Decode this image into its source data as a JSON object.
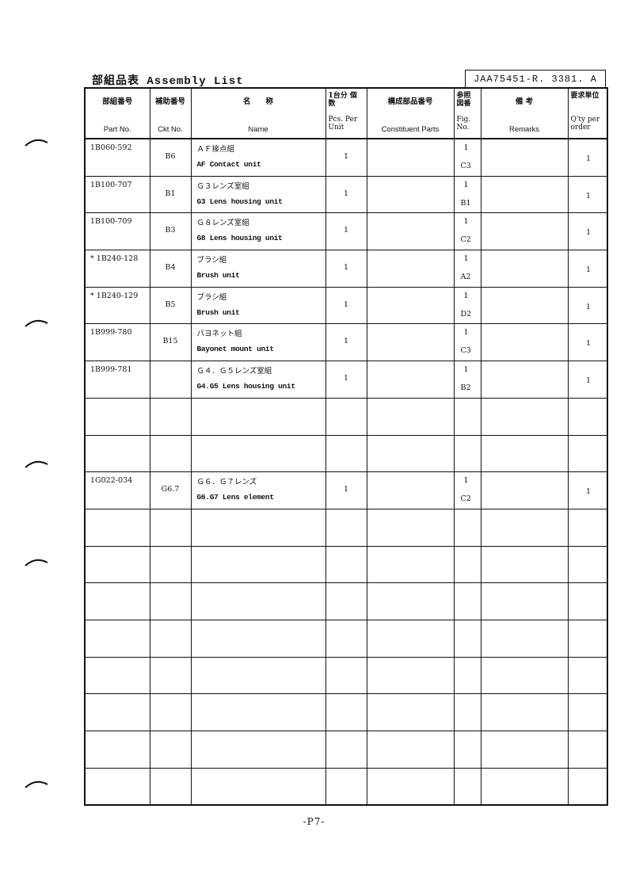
{
  "title": "部組品表 Assembly List",
  "doc_number": "JAA75451-R. 3381. A",
  "headers": [
    {
      "jp": "部組番号",
      "en": "Part   No."
    },
    {
      "jp": "補助番号",
      "en": "Ckt No."
    },
    {
      "jp": "名　　称",
      "en": "Name"
    },
    {
      "jp": "1台分 個 数",
      "en": "Pcs. Per Unit"
    },
    {
      "jp": "構成部品番号",
      "en": "Constituent Parts"
    },
    {
      "jp": "参照 図番",
      "en": "Fig. No."
    },
    {
      "jp": "備 考",
      "en": "Remarks"
    },
    {
      "jp": "要求単位",
      "en": "Q'ty per order"
    }
  ],
  "rows": [
    {
      "part": "1B060-592",
      "ckt": "B6",
      "name_jp": "ＡＦ接点組",
      "name_en": "AF Contact unit",
      "pcs": "1",
      "fig1": "1",
      "fig2": "C3",
      "qty": "1"
    },
    {
      "part": "1B100-707",
      "ckt": "B1",
      "name_jp": "Ｇ３レンズ室組",
      "name_en": "G3 Lens housing unit",
      "pcs": "1",
      "fig1": "1",
      "fig2": "B1",
      "qty": "1"
    },
    {
      "part": "1B100-709",
      "ckt": "B3",
      "name_jp": "Ｇ８レンズ室組",
      "name_en": "G8 Lens housing unit",
      "pcs": "1",
      "fig1": "1",
      "fig2": "C2",
      "qty": "1"
    },
    {
      "part": "* 1B240-128",
      "ckt": "B4",
      "name_jp": "ブラシ組",
      "name_en": "Brush unit",
      "pcs": "1",
      "fig1": "1",
      "fig2": "A2",
      "qty": "1"
    },
    {
      "part": "* 1B240-129",
      "ckt": "B5",
      "name_jp": "ブラシ組",
      "name_en": "Brush unit",
      "pcs": "1",
      "fig1": "1",
      "fig2": "D2",
      "qty": "1"
    },
    {
      "part": "1B999-780",
      "ckt": "B15",
      "name_jp": "バヨネット組",
      "name_en": "Bayonet mount unit",
      "pcs": "1",
      "fig1": "1",
      "fig2": "C3",
      "qty": "1"
    },
    {
      "part": "1B999-781",
      "ckt": "",
      "name_jp": "Ｇ４．Ｇ５レンズ室組",
      "name_en": "G4.G5 Lens housing unit",
      "pcs": "1",
      "fig1": "1",
      "fig2": "B2",
      "qty": "1"
    },
    {},
    {},
    {
      "part": "1G022-034",
      "ckt": "G6.7",
      "name_jp": "Ｇ６．Ｇ７レンズ",
      "name_en": "G6.G7 Lens element",
      "pcs": "1",
      "fig1": "1",
      "fig2": "C2",
      "qty": "1"
    },
    {},
    {},
    {},
    {},
    {},
    {},
    {},
    {}
  ],
  "footer": "-P7-"
}
